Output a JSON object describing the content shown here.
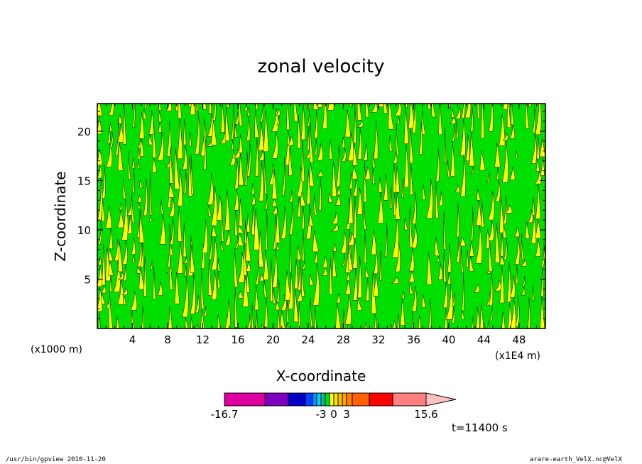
{
  "chart_data": {
    "type": "heatmap",
    "title": "zonal velocity",
    "xlabel": "X-coordinate",
    "ylabel": "Z-coordinate",
    "x_unit": "(x1E4 m)",
    "y_unit": "(x1000 m)",
    "xlim": [
      0,
      51
    ],
    "ylim": [
      0,
      22.8
    ],
    "x_ticks": [
      "4",
      "8",
      "12",
      "16",
      "20",
      "24",
      "28",
      "32",
      "36",
      "40",
      "44",
      "48"
    ],
    "x_tick_values": [
      4,
      8,
      12,
      16,
      20,
      24,
      28,
      32,
      36,
      40,
      44,
      48
    ],
    "y_ticks": [
      "5",
      "10",
      "15",
      "20"
    ],
    "y_tick_values": [
      5,
      10,
      15,
      20
    ],
    "dominant_fill": [
      {
        "interval": [
          -1,
          0
        ],
        "color": "#00e000"
      },
      {
        "interval": [
          0,
          1
        ],
        "color": "#ffff00"
      }
    ],
    "colorbar": {
      "min_label": "-16.7",
      "max_label": "15.6",
      "tick_labels": [
        "-16.7",
        "-3",
        "0",
        "3",
        "15.6"
      ],
      "tick_values": [
        -16.7,
        -3,
        0,
        3,
        15.6
      ],
      "levels": [
        -16.7,
        -13,
        -10,
        -6,
        -5,
        -4,
        -3,
        -2,
        -1,
        0,
        1,
        2,
        3,
        4,
        6,
        10,
        15.6
      ],
      "colors": [
        "#e000a0",
        "#8000c0",
        "#0000c8",
        "#0040ff",
        "#0090ff",
        "#00d0ff",
        "#00c0a0",
        "#00e000",
        "#ffff00",
        "#ffe000",
        "#ffc000",
        "#ffa000",
        "#ff8000",
        "#ff6000",
        "#ff0000",
        "#ff8080"
      ],
      "extend_color": "#ffc0c0"
    }
  },
  "annotations": {
    "time": "t=11400 s",
    "footer_left": "/usr/bin/gpview  2010-11-20",
    "footer_right": "arare-earth_VelX.nc@VelX"
  }
}
